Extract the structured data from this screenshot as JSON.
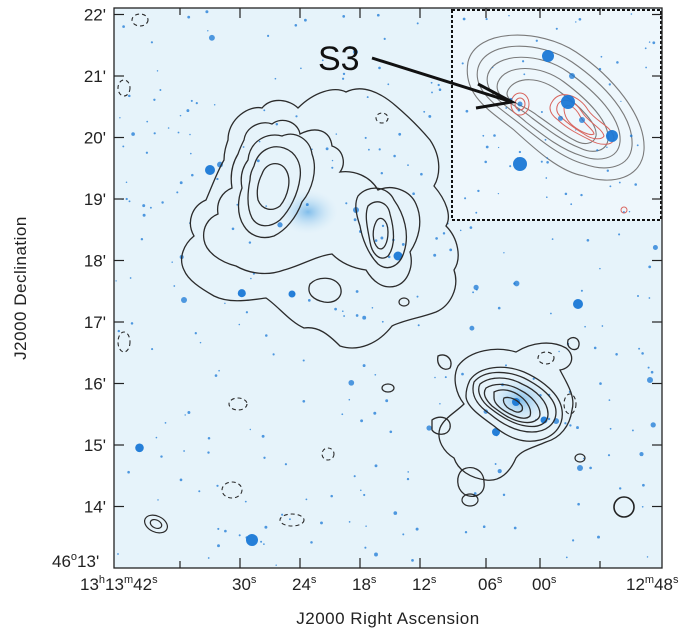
{
  "figure": {
    "xlabel": "J2000 Right Ascension",
    "ylabel": "J2000 Declination",
    "dec_ticks": [
      {
        "label": "22'",
        "value": 22
      },
      {
        "label": "21'",
        "value": 21
      },
      {
        "label": "20'",
        "value": 20
      },
      {
        "label": "19'",
        "value": 19
      },
      {
        "label": "18'",
        "value": 18
      },
      {
        "label": "17'",
        "value": 17
      },
      {
        "label": "16'",
        "value": 16
      },
      {
        "label": "15'",
        "value": 15
      },
      {
        "label": "14'",
        "value": 14
      }
    ],
    "dec_origin": {
      "deg": "46",
      "deg_sup": "o",
      "min": "13'"
    },
    "ra_origin": {
      "h": "13",
      "h_sup": "h",
      "m": "13",
      "m_sup": "m",
      "s": "42",
      "s_sup": "s"
    },
    "ra_ticks": [
      {
        "label": "30",
        "sup": "s"
      },
      {
        "label": "24",
        "sup": "s"
      },
      {
        "label": "18",
        "sup": "s"
      },
      {
        "label": "12",
        "sup": "s"
      },
      {
        "label": "06",
        "sup": "s"
      },
      {
        "label": "00",
        "sup": "s"
      }
    ],
    "ra_end": {
      "m": "12",
      "m_sup": "m",
      "s": "48",
      "s_sup": "s"
    },
    "inset": {
      "label": "S3"
    },
    "colors": {
      "background": "#e6f3fa",
      "star": "#1a78d6",
      "contour": "#2b2b2b",
      "inset_contour_red": "#d9655e",
      "inset_contour_gray": "#7a7a7a"
    }
  }
}
